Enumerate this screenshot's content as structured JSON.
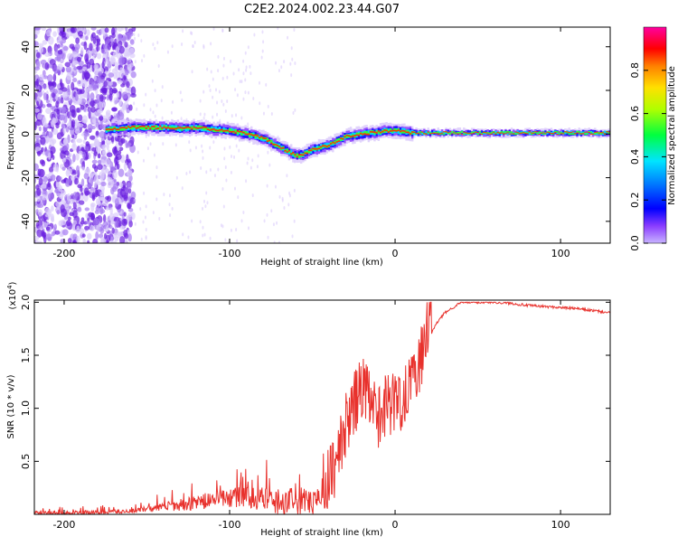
{
  "figure": {
    "title": "C2E2.2024.002.23.44.G07"
  },
  "chart_data": [
    {
      "type": "heatmap",
      "xlabel": "Height of straight line (km)",
      "ylabel": "Frequency (Hz)",
      "xlim": [
        -218,
        130
      ],
      "ylim": [
        -50,
        49
      ],
      "xticks": [
        -200,
        -100,
        0,
        100
      ],
      "yticks": [
        -40,
        -20,
        0,
        20,
        40
      ],
      "grid": false,
      "colorbar": {
        "label": "Normalized spectral amplitude",
        "range": [
          0,
          1
        ],
        "ticks": [
          "0.0",
          "0.2",
          "0.4",
          "0.6",
          "0.8"
        ],
        "colors": [
          "#c8b4ff",
          "#6000d8",
          "#0000ff",
          "#00e5ff",
          "#00ff00",
          "#ffff00",
          "#ff8000",
          "#ff0000",
          "#ff00a0"
        ]
      },
      "ridge": {
        "x": [
          -175,
          -160,
          -150,
          -140,
          -130,
          -120,
          -110,
          -100,
          -90,
          -80,
          -75,
          -70,
          -65,
          -60,
          -55,
          -50,
          -45,
          -40,
          -35,
          -30,
          -25,
          -20,
          -15,
          -10,
          -5,
          0,
          5,
          10,
          130
        ],
        "y": [
          2,
          3,
          3,
          3,
          2.5,
          3,
          2,
          1.5,
          0,
          -2,
          -4,
          -6,
          -8,
          -10,
          -9,
          -7,
          -6,
          -5,
          -3,
          -1,
          -0.5,
          0,
          0.5,
          1,
          1.5,
          1.5,
          1.2,
          0.5,
          0.5
        ]
      }
    },
    {
      "type": "line",
      "xlabel": "Height of straight line (km)",
      "ylabel": "SNR (10 * v/v)",
      "y_multiplier": "(x10",
      "y_multiplier_exp": "4",
      "y_multiplier_close": ")",
      "xlim": [
        -218,
        130
      ],
      "ylim": [
        0,
        2.02
      ],
      "xticks": [
        -200,
        -100,
        0,
        100
      ],
      "yticks": [
        0.5,
        1.0,
        1.5,
        2.0
      ],
      "ytick_labels": [
        "0.5",
        "1.0",
        "1.5",
        "2.0"
      ],
      "grid": false,
      "color": "#e8312c",
      "series": [
        {
          "x": [
            -218,
            -200,
            -180,
            -160,
            -140,
            -130,
            -120,
            -110,
            -100,
            -90,
            -80,
            -70,
            -60,
            -50,
            -45,
            -40,
            -35,
            -30,
            -25,
            -20,
            -15,
            -10,
            -5,
            0,
            5,
            10,
            15,
            20,
            25,
            30,
            35,
            40,
            50,
            60,
            70,
            80,
            90,
            100,
            110,
            120,
            130
          ],
          "y": [
            0.01,
            0.01,
            0.02,
            0.03,
            0.07,
            0.09,
            0.11,
            0.14,
            0.16,
            0.16,
            0.14,
            0.12,
            0.12,
            0.11,
            0.13,
            0.2,
            0.4,
            0.7,
            0.9,
            1.1,
            0.9,
            0.8,
            0.95,
            0.9,
            1.0,
            1.2,
            1.3,
            1.65,
            1.8,
            1.9,
            1.95,
            2.0,
            2.0,
            2.0,
            1.99,
            1.97,
            1.96,
            1.95,
            1.94,
            1.92,
            1.9
          ]
        }
      ]
    }
  ]
}
